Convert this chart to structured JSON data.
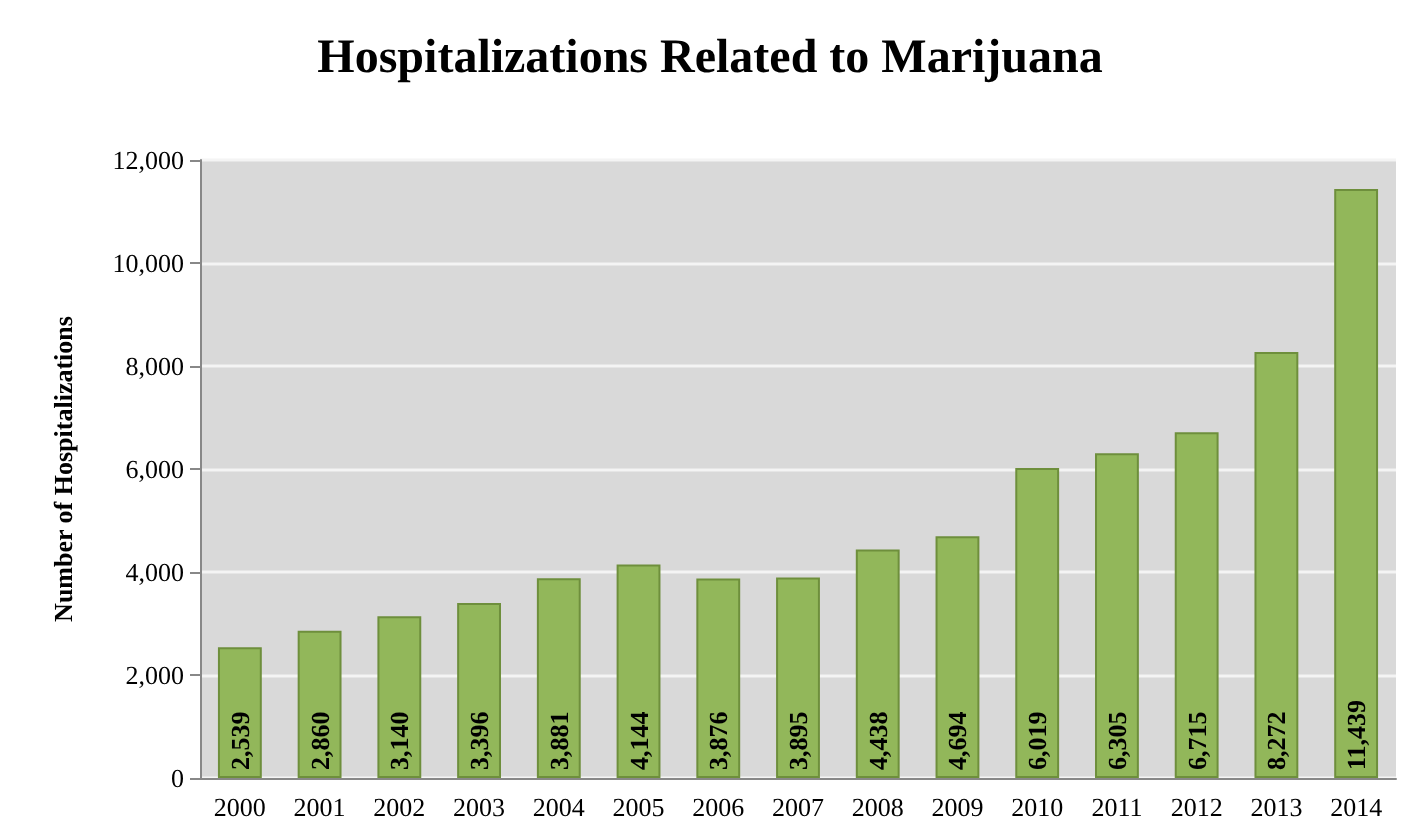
{
  "chart_data": {
    "type": "bar",
    "title": "Hospitalizations Related to Marijuana",
    "ylabel": "Number of Hospitalizations",
    "categories": [
      "2000",
      "2001",
      "2002",
      "2003",
      "2004",
      "2005",
      "2006",
      "2007",
      "2008",
      "2009",
      "2010",
      "2011",
      "2012",
      "2013",
      "2014"
    ],
    "values": [
      2539,
      2860,
      3140,
      3396,
      3881,
      4144,
      3876,
      3895,
      4438,
      4694,
      6019,
      6305,
      6715,
      8272,
      11439
    ],
    "value_labels": [
      "2,539",
      "2,860",
      "3,140",
      "3,396",
      "3,881",
      "4,144",
      "3,876",
      "3,895",
      "4,438",
      "4,694",
      "6,019",
      "6,305",
      "6,715",
      "8,272",
      "11,439"
    ],
    "color": "#92b75a",
    "ylim": [
      0,
      12000
    ],
    "yticks": [
      0,
      {
        "value": 2000,
        "label": "2,000"
      },
      {
        "value": 4000,
        "label": "4,000"
      },
      {
        "value": 6000,
        "label": "6,000"
      },
      {
        "value": 8000,
        "label": "8,000"
      },
      {
        "value": 10000,
        "label": "10,000"
      },
      {
        "value": 12000,
        "label": "12,000"
      }
    ],
    "grid": "y"
  }
}
